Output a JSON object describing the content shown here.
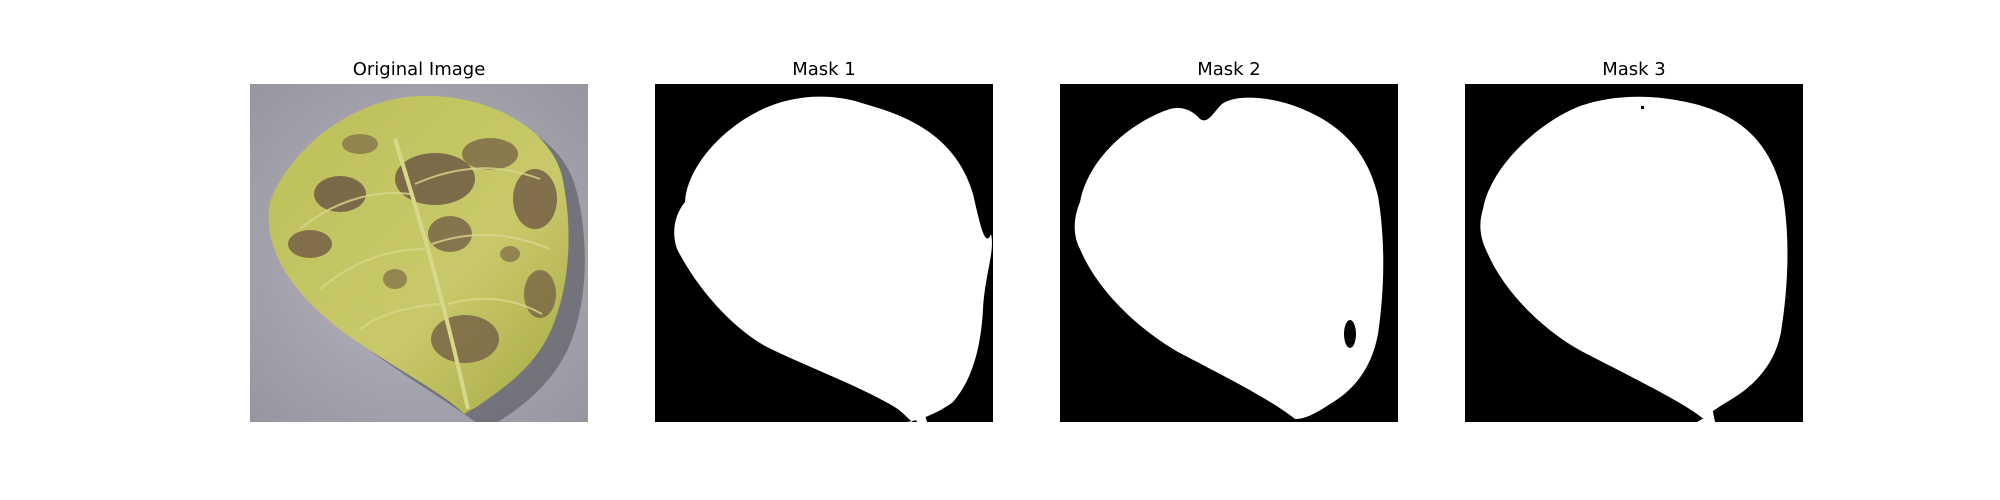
{
  "figure": {
    "panels": [
      {
        "title": "Original Image",
        "kind": "photo",
        "subject": "leaf-photo"
      },
      {
        "title": "Mask 1",
        "kind": "mask"
      },
      {
        "title": "Mask 2",
        "kind": "mask"
      },
      {
        "title": "Mask 3",
        "kind": "mask"
      }
    ]
  },
  "colors": {
    "page_background": "#ffffff",
    "title_text": "#000000",
    "mask_background": "#000000",
    "mask_foreground": "#ffffff",
    "photo_background": "#a9a8b2",
    "leaf_fill": "#c7c763",
    "leaf_spot": "#6f5a43",
    "leaf_vein": "#d8d88c",
    "leaf_shadow": "#4f4f56"
  }
}
